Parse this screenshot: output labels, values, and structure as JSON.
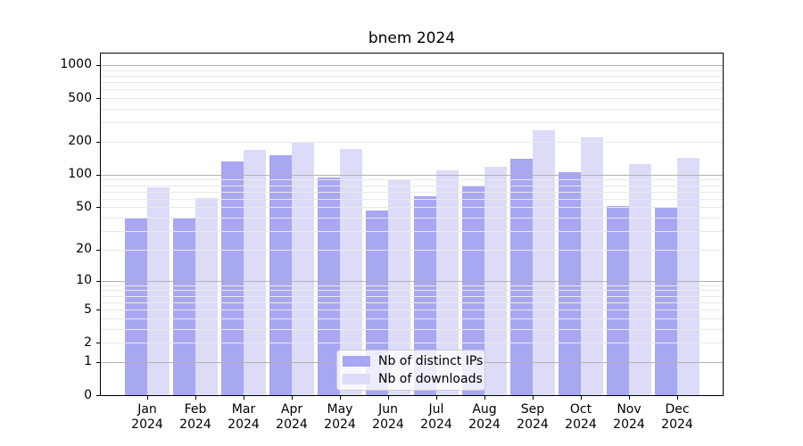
{
  "chart_data": {
    "type": "bar",
    "title": "bnem 2024",
    "categories": [
      "Jan 2024",
      "Feb 2024",
      "Mar 2024",
      "Apr 2024",
      "May 2024",
      "Jun 2024",
      "Jul 2024",
      "Aug 2024",
      "Sep 2024",
      "Oct 2024",
      "Nov 2024",
      "Dec 2024"
    ],
    "series": [
      {
        "name": "Nb of distinct IPs",
        "color": "#a7a7f2",
        "values": [
          40,
          40,
          132,
          150,
          95,
          47,
          63,
          78,
          140,
          105,
          51,
          49
        ]
      },
      {
        "name": "Nb of downloads",
        "color": "#dcdcf9",
        "values": [
          77,
          61,
          169,
          200,
          172,
          89,
          110,
          118,
          255,
          220,
          125,
          143
        ]
      }
    ],
    "yscale": "log1p",
    "yticks": [
      0,
      1,
      2,
      5,
      10,
      20,
      50,
      100,
      200,
      500,
      1000
    ],
    "ylim": [
      0,
      1275
    ],
    "xlabel": "",
    "ylabel": "",
    "grid": {
      "orientation": "horizontal",
      "major_color": "#b2b2b2",
      "minor_color": "#e9e9e9"
    },
    "legend_position": "bottom-center"
  }
}
